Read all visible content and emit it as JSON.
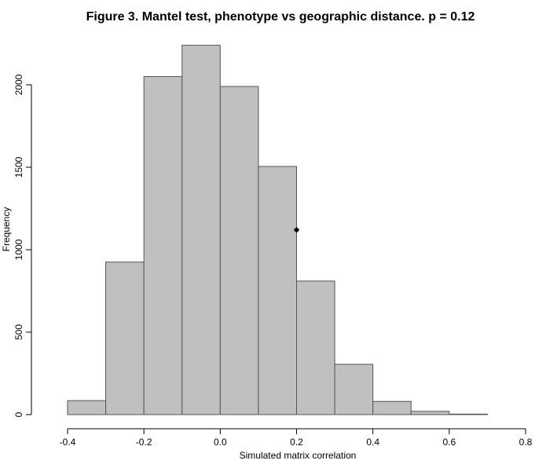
{
  "chart_data": {
    "type": "bar",
    "title": "Figure 3. Mantel test, phenotype vs geographic distance. p = 0.12",
    "xlabel": "Simulated matrix correlation",
    "ylabel": "Frequency",
    "bins": [
      {
        "x0": -0.4,
        "x1": -0.3,
        "value": 85
      },
      {
        "x0": -0.3,
        "x1": -0.2,
        "value": 925
      },
      {
        "x0": -0.2,
        "x1": -0.1,
        "value": 2050
      },
      {
        "x0": -0.1,
        "x1": 0.0,
        "value": 2240
      },
      {
        "x0": 0.0,
        "x1": 0.1,
        "value": 1990
      },
      {
        "x0": 0.1,
        "x1": 0.2,
        "value": 1505
      },
      {
        "x0": 0.2,
        "x1": 0.3,
        "value": 810
      },
      {
        "x0": 0.3,
        "x1": 0.4,
        "value": 305
      },
      {
        "x0": 0.4,
        "x1": 0.5,
        "value": 80
      },
      {
        "x0": 0.5,
        "x1": 0.6,
        "value": 20
      },
      {
        "x0": 0.6,
        "x1": 0.7,
        "value": 3
      }
    ],
    "xlim": [
      -0.4,
      0.8
    ],
    "ylim": [
      0,
      2300
    ],
    "xticks": [
      "-0.4",
      "-0.2",
      "0.0",
      "0.2",
      "0.4",
      "0.6",
      "0.8"
    ],
    "xtick_values": [
      -0.4,
      -0.2,
      0.0,
      0.2,
      0.4,
      0.6,
      0.8
    ],
    "yticks": [
      "0",
      "500",
      "1000",
      "1500",
      "2000"
    ],
    "ytick_values": [
      0,
      500,
      1000,
      1500,
      2000
    ],
    "observed_marker": {
      "x": 0.2,
      "y": 1120
    },
    "grid": false,
    "colors": {
      "bar_fill": "#c0c0c0",
      "bar_stroke": "#555555",
      "marker": "#000000"
    }
  }
}
